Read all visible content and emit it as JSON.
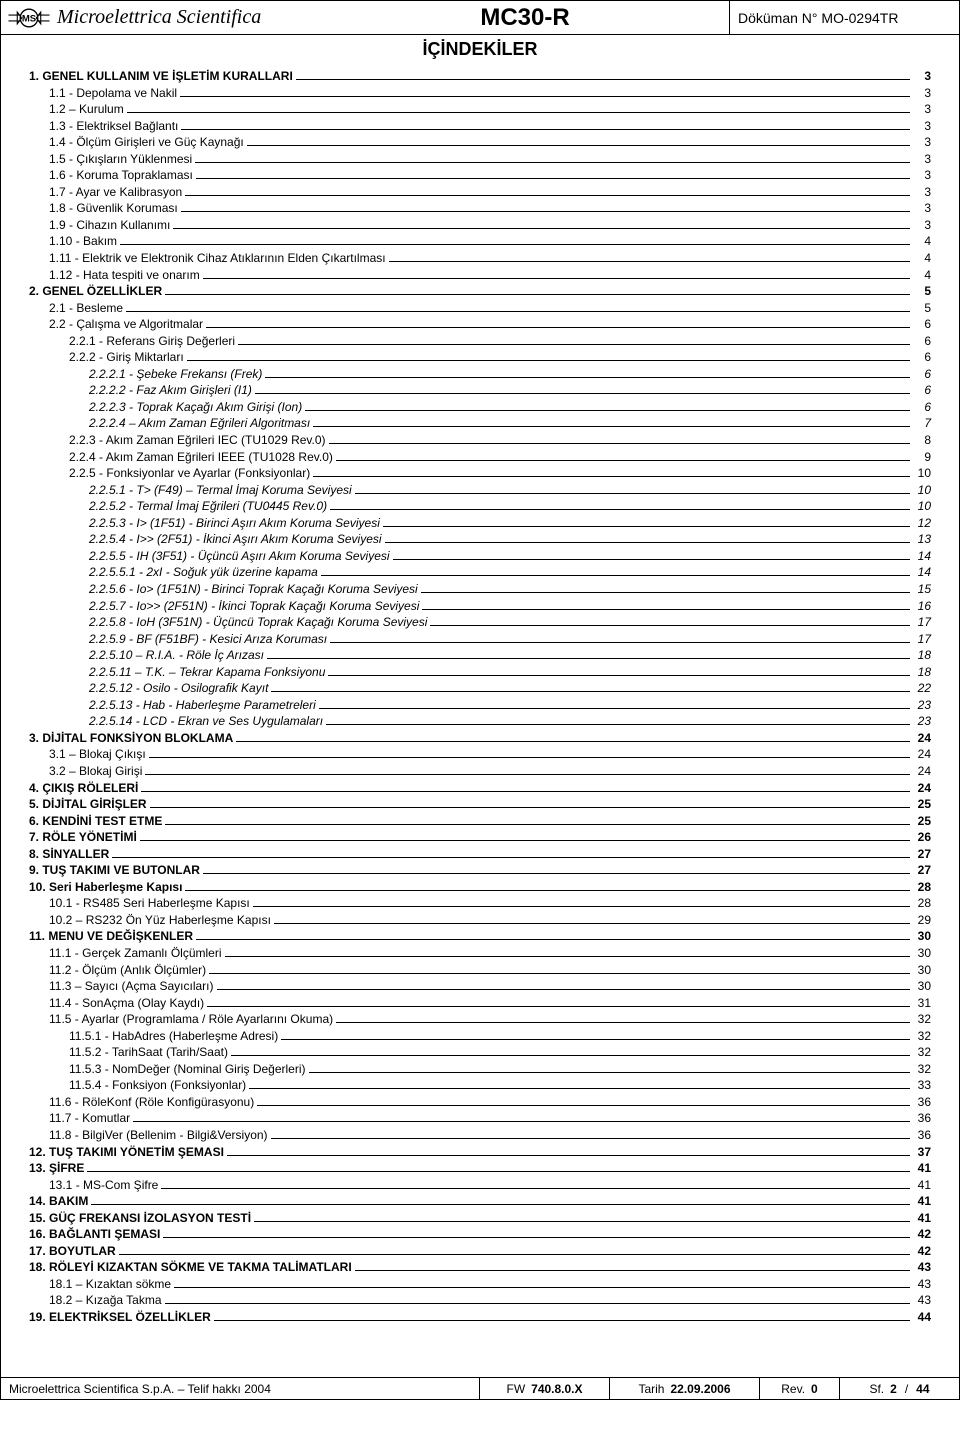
{
  "header": {
    "brand": "Microelettrica Scientifica",
    "model": "MC30-R",
    "docno_label": "Döküman N°",
    "docno": "MO-0294TR"
  },
  "subtitle": "İÇİNDEKİLER",
  "toc": [
    {
      "label": "1. GENEL KULLANIM VE İŞLETİM KURALLARI",
      "page": "3",
      "level": 0,
      "bold": true
    },
    {
      "label": "1.1 - Depolama ve Nakil",
      "page": "3",
      "level": 1
    },
    {
      "label": "1.2 – Kurulum",
      "page": "3",
      "level": 1
    },
    {
      "label": "1.3 - Elektriksel Bağlantı",
      "page": "3",
      "level": 1
    },
    {
      "label": "1.4 - Ölçüm Girişleri ve Güç Kaynağı",
      "page": "3",
      "level": 1
    },
    {
      "label": "1.5 - Çıkışların Yüklenmesi",
      "page": "3",
      "level": 1
    },
    {
      "label": "1.6 - Koruma Topraklaması",
      "page": "3",
      "level": 1
    },
    {
      "label": "1.7 - Ayar ve Kalibrasyon",
      "page": "3",
      "level": 1
    },
    {
      "label": "1.8 - Güvenlik Koruması",
      "page": "3",
      "level": 1
    },
    {
      "label": "1.9 - Cihazın Kullanımı",
      "page": "3",
      "level": 1
    },
    {
      "label": "1.10 - Bakım",
      "page": "4",
      "level": 1
    },
    {
      "label": "1.11 - Elektrik ve Elektronik Cihaz Atıklarının Elden Çıkartılması",
      "page": "4",
      "level": 1
    },
    {
      "label": "1.12 - Hata tespiti ve onarım",
      "page": "4",
      "level": 1
    },
    {
      "label": "2. GENEL ÖZELLİKLER",
      "page": "5",
      "level": 0,
      "bold": true
    },
    {
      "label": "2.1 - Besleme",
      "page": "5",
      "level": 1
    },
    {
      "label": "2.2 - Çalışma ve Algoritmalar",
      "page": "6",
      "level": 1
    },
    {
      "label": "2.2.1 - Referans Giriş Değerleri",
      "page": "6",
      "level": 2
    },
    {
      "label": "2.2.2 - Giriş Miktarları",
      "page": "6",
      "level": 2
    },
    {
      "label": "2.2.2.1 - Şebeke Frekansı (Frek)",
      "page": "6",
      "level": 3,
      "italic": true
    },
    {
      "label": "2.2.2.2 - Faz Akım Girişleri (I1)",
      "page": "6",
      "level": 3,
      "italic": true
    },
    {
      "label": "2.2.2.3 - Toprak Kaçağı Akım Girişi (Ion)",
      "page": "6",
      "level": 3,
      "italic": true
    },
    {
      "label": "2.2.2.4 – Akım Zaman Eğrileri Algoritması",
      "page": "7",
      "level": 3,
      "italic": true
    },
    {
      "label": "2.2.3 - Akım Zaman Eğrileri IEC (TU1029 Rev.0)",
      "page": "8",
      "level": 2
    },
    {
      "label": "2.2.4 - Akım Zaman Eğrileri IEEE (TU1028 Rev.0)",
      "page": "9",
      "level": 2
    },
    {
      "label": "2.2.5 - Fonksiyonlar ve Ayarlar (Fonksiyonlar)",
      "page": "10",
      "level": 2
    },
    {
      "label": "2.2.5.1 - T> (F49) – Termal İmaj Koruma Seviyesi",
      "page": "10",
      "level": 3,
      "italic": true
    },
    {
      "label": "2.2.5.2 - Termal İmaj Eğrileri (TU0445 Rev.0)",
      "page": "10",
      "level": 3,
      "italic": true
    },
    {
      "label": "2.2.5.3 - I> (1F51) - Birinci Aşırı Akım Koruma Seviyesi",
      "page": "12",
      "level": 3,
      "italic": true
    },
    {
      "label": "2.2.5.4 - I>> (2F51) - İkinci Aşırı Akım Koruma Seviyesi",
      "page": "13",
      "level": 3,
      "italic": true
    },
    {
      "label": "2.2.5.5 - IH (3F51) - Üçüncü Aşırı Akım Koruma Seviyesi",
      "page": "14",
      "level": 3,
      "italic": true
    },
    {
      "label": "2.2.5.5.1 - 2xI - Soğuk yük üzerine kapama",
      "page": "14",
      "level": 3,
      "italic": true
    },
    {
      "label": "2.2.5.6 - Io> (1F51N) - Birinci Toprak Kaçağı Koruma Seviyesi",
      "page": "15",
      "level": 3,
      "italic": true
    },
    {
      "label": "2.2.5.7 - Io>> (2F51N) - İkinci Toprak Kaçağı Koruma Seviyesi",
      "page": "16",
      "level": 3,
      "italic": true
    },
    {
      "label": "2.2.5.8 - IoH (3F51N) - Üçüncü Toprak Kaçağı Koruma Seviyesi",
      "page": "17",
      "level": 3,
      "italic": true
    },
    {
      "label": "2.2.5.9 - BF (F51BF) - Kesici Arıza Koruması",
      "page": "17",
      "level": 3,
      "italic": true
    },
    {
      "label": "2.2.5.10 – R.I.A. - Röle İç Arızası",
      "page": "18",
      "level": 3,
      "italic": true
    },
    {
      "label": "2.2.5.11 – T.K. – Tekrar Kapama Fonksiyonu",
      "page": "18",
      "level": 3,
      "italic": true
    },
    {
      "label": "2.2.5.12 - Osilo - Osilografik Kayıt",
      "page": "22",
      "level": 3,
      "italic": true
    },
    {
      "label": "2.2.5.13 - Hab - Haberleşme Parametreleri",
      "page": "23",
      "level": 3,
      "italic": true
    },
    {
      "label": "2.2.5.14 - LCD - Ekran ve Ses Uygulamaları",
      "page": "23",
      "level": 3,
      "italic": true
    },
    {
      "label": "3. DİJİTAL FONKSİYON BLOKLAMA",
      "page": "24",
      "level": 0,
      "bold": true
    },
    {
      "label": "3.1 – Blokaj Çıkışı",
      "page": "24",
      "level": 1
    },
    {
      "label": "3.2 – Blokaj Girişi",
      "page": "24",
      "level": 1
    },
    {
      "label": "4. ÇIKIŞ RÖLELERİ",
      "page": "24",
      "level": 0,
      "bold": true
    },
    {
      "label": "5. DİJİTAL GİRİŞLER",
      "page": "25",
      "level": 0,
      "bold": true
    },
    {
      "label": "6. KENDİNİ TEST ETME",
      "page": "25",
      "level": 0,
      "bold": true
    },
    {
      "label": "7. RÖLE YÖNETİMİ",
      "page": "26",
      "level": 0,
      "bold": true
    },
    {
      "label": "8. SİNYALLER",
      "page": "27",
      "level": 0,
      "bold": true
    },
    {
      "label": "9. TUŞ TAKIMI VE BUTONLAR",
      "page": "27",
      "level": 0,
      "bold": true
    },
    {
      "label": "10. Seri Haberleşme Kapısı",
      "page": "28",
      "level": 0,
      "bold": true
    },
    {
      "label": "10.1 - RS485 Seri Haberleşme Kapısı",
      "page": "28",
      "level": 1
    },
    {
      "label": "10.2 – RS232 Ön Yüz Haberleşme Kapısı",
      "page": "29",
      "level": 1
    },
    {
      "label": "11. MENU VE DEĞİŞKENLER",
      "page": "30",
      "level": 0,
      "bold": true
    },
    {
      "label": "11.1 - Gerçek Zamanlı Ölçümleri",
      "page": "30",
      "level": 1
    },
    {
      "label": "11.2 - Ölçüm (Anlık Ölçümler)",
      "page": "30",
      "level": 1
    },
    {
      "label": "11.3 – Sayıcı (Açma Sayıcıları)",
      "page": "30",
      "level": 1
    },
    {
      "label": "11.4 -  SonAçma (Olay Kaydı)",
      "page": "31",
      "level": 1
    },
    {
      "label": "11.5 -  Ayarlar (Programlama / Röle Ayarlarını Okuma)",
      "page": "32",
      "level": 1
    },
    {
      "label": "11.5.1 - HabAdres (Haberleşme Adresi)",
      "page": "32",
      "level": 2
    },
    {
      "label": "11.5.2 - TarihSaat (Tarih/Saat)",
      "page": "32",
      "level": 2
    },
    {
      "label": "11.5.3 - NomDeğer (Nominal Giriş Değerleri)",
      "page": "32",
      "level": 2
    },
    {
      "label": "11.5.4 - Fonksiyon (Fonksiyonlar)",
      "page": "33",
      "level": 2
    },
    {
      "label": "11.6 - RöleKonf (Röle Konfigürasyonu)",
      "page": "36",
      "level": 1
    },
    {
      "label": "11.7 - Komutlar",
      "page": "36",
      "level": 1
    },
    {
      "label": "11.8 - BilgiVer (Bellenim - Bilgi&Versiyon)",
      "page": "36",
      "level": 1
    },
    {
      "label": "12. TUŞ TAKIMI YÖNETİM ŞEMASI",
      "page": "37",
      "level": 0,
      "bold": true
    },
    {
      "label": "13. ŞİFRE",
      "page": "41",
      "level": 0,
      "bold": true
    },
    {
      "label": "13.1 - MS-Com Şifre",
      "page": "41",
      "level": 1
    },
    {
      "label": "14. BAKIM",
      "page": "41",
      "level": 0,
      "bold": true
    },
    {
      "label": "15. GÜÇ FREKANSI İZOLASYON TESTİ",
      "page": "41",
      "level": 0,
      "bold": true
    },
    {
      "label": "16. BAĞLANTI ŞEMASI",
      "page": "42",
      "level": 0,
      "bold": true
    },
    {
      "label": "17. BOYUTLAR",
      "page": "42",
      "level": 0,
      "bold": true
    },
    {
      "label": "18. RÖLEYİ KIZAKTAN SÖKME VE TAKMA TALİMATLARI",
      "page": "43",
      "level": 0,
      "bold": true
    },
    {
      "label": "18.1 – Kızaktan sökme",
      "page": "43",
      "level": 1
    },
    {
      "label": "18.2 – Kızağa Takma",
      "page": "43",
      "level": 1
    },
    {
      "label": "19. ELEKTRİKSEL ÖZELLİKLER",
      "page": "44",
      "level": 0,
      "bold": true
    }
  ],
  "footer": {
    "company": "Microelettrica Scientifica S.p.A. – Telif hakkı 2004",
    "fw_label": "FW",
    "fw": "740.8.0.X",
    "tarih_label": "Tarih",
    "tarih": "22.09.2006",
    "rev_label": "Rev.",
    "rev": "0",
    "sf_label": "Sf.",
    "sf_cur": "2",
    "sf_sep": "/",
    "sf_total": "44"
  }
}
